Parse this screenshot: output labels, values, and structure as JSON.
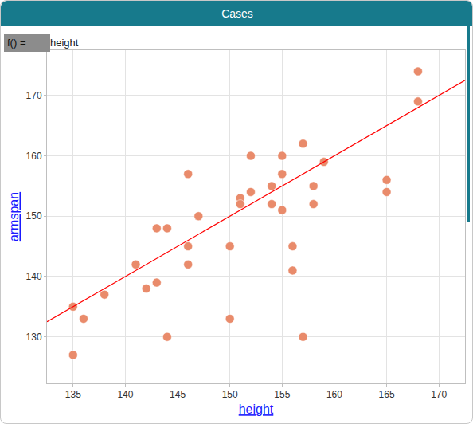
{
  "chart_data": {
    "type": "scatter",
    "title": "Cases",
    "annotations": [
      {
        "label": "f() =",
        "text": "height"
      }
    ],
    "x_label": "height",
    "y_label": "armspan",
    "marker": "circle",
    "grid": true,
    "series": [
      {
        "type": "scatter",
        "color": "#e98b6b",
        "x": [
          135,
          135,
          136,
          138,
          141,
          142,
          143,
          143,
          144,
          144,
          146,
          146,
          146,
          147,
          150,
          150,
          151,
          151,
          152,
          152,
          154,
          154,
          155,
          155,
          155,
          156,
          156,
          157,
          157,
          158,
          158,
          159,
          165,
          165,
          168,
          168
        ],
        "values": [
          135,
          127,
          133,
          137,
          142,
          138,
          148,
          139,
          148,
          130,
          157,
          145,
          142,
          150,
          145,
          133,
          153,
          152,
          160,
          154,
          155,
          152,
          160,
          157,
          151,
          145,
          141,
          162,
          130,
          155,
          152,
          159,
          156,
          154,
          174,
          169
        ]
      },
      {
        "type": "line",
        "color": "#ff0000",
        "line_style": "solid",
        "x": [
          132.5,
          172.5
        ],
        "values": [
          132.5,
          172.5
        ]
      }
    ],
    "xlim": [
      132.5,
      172.5
    ],
    "xticks": [
      135,
      140,
      145,
      150,
      155,
      160,
      165,
      170
    ],
    "ylim": [
      122.3,
      177.5
    ],
    "yticks": [
      130,
      140,
      150,
      160,
      170
    ]
  }
}
